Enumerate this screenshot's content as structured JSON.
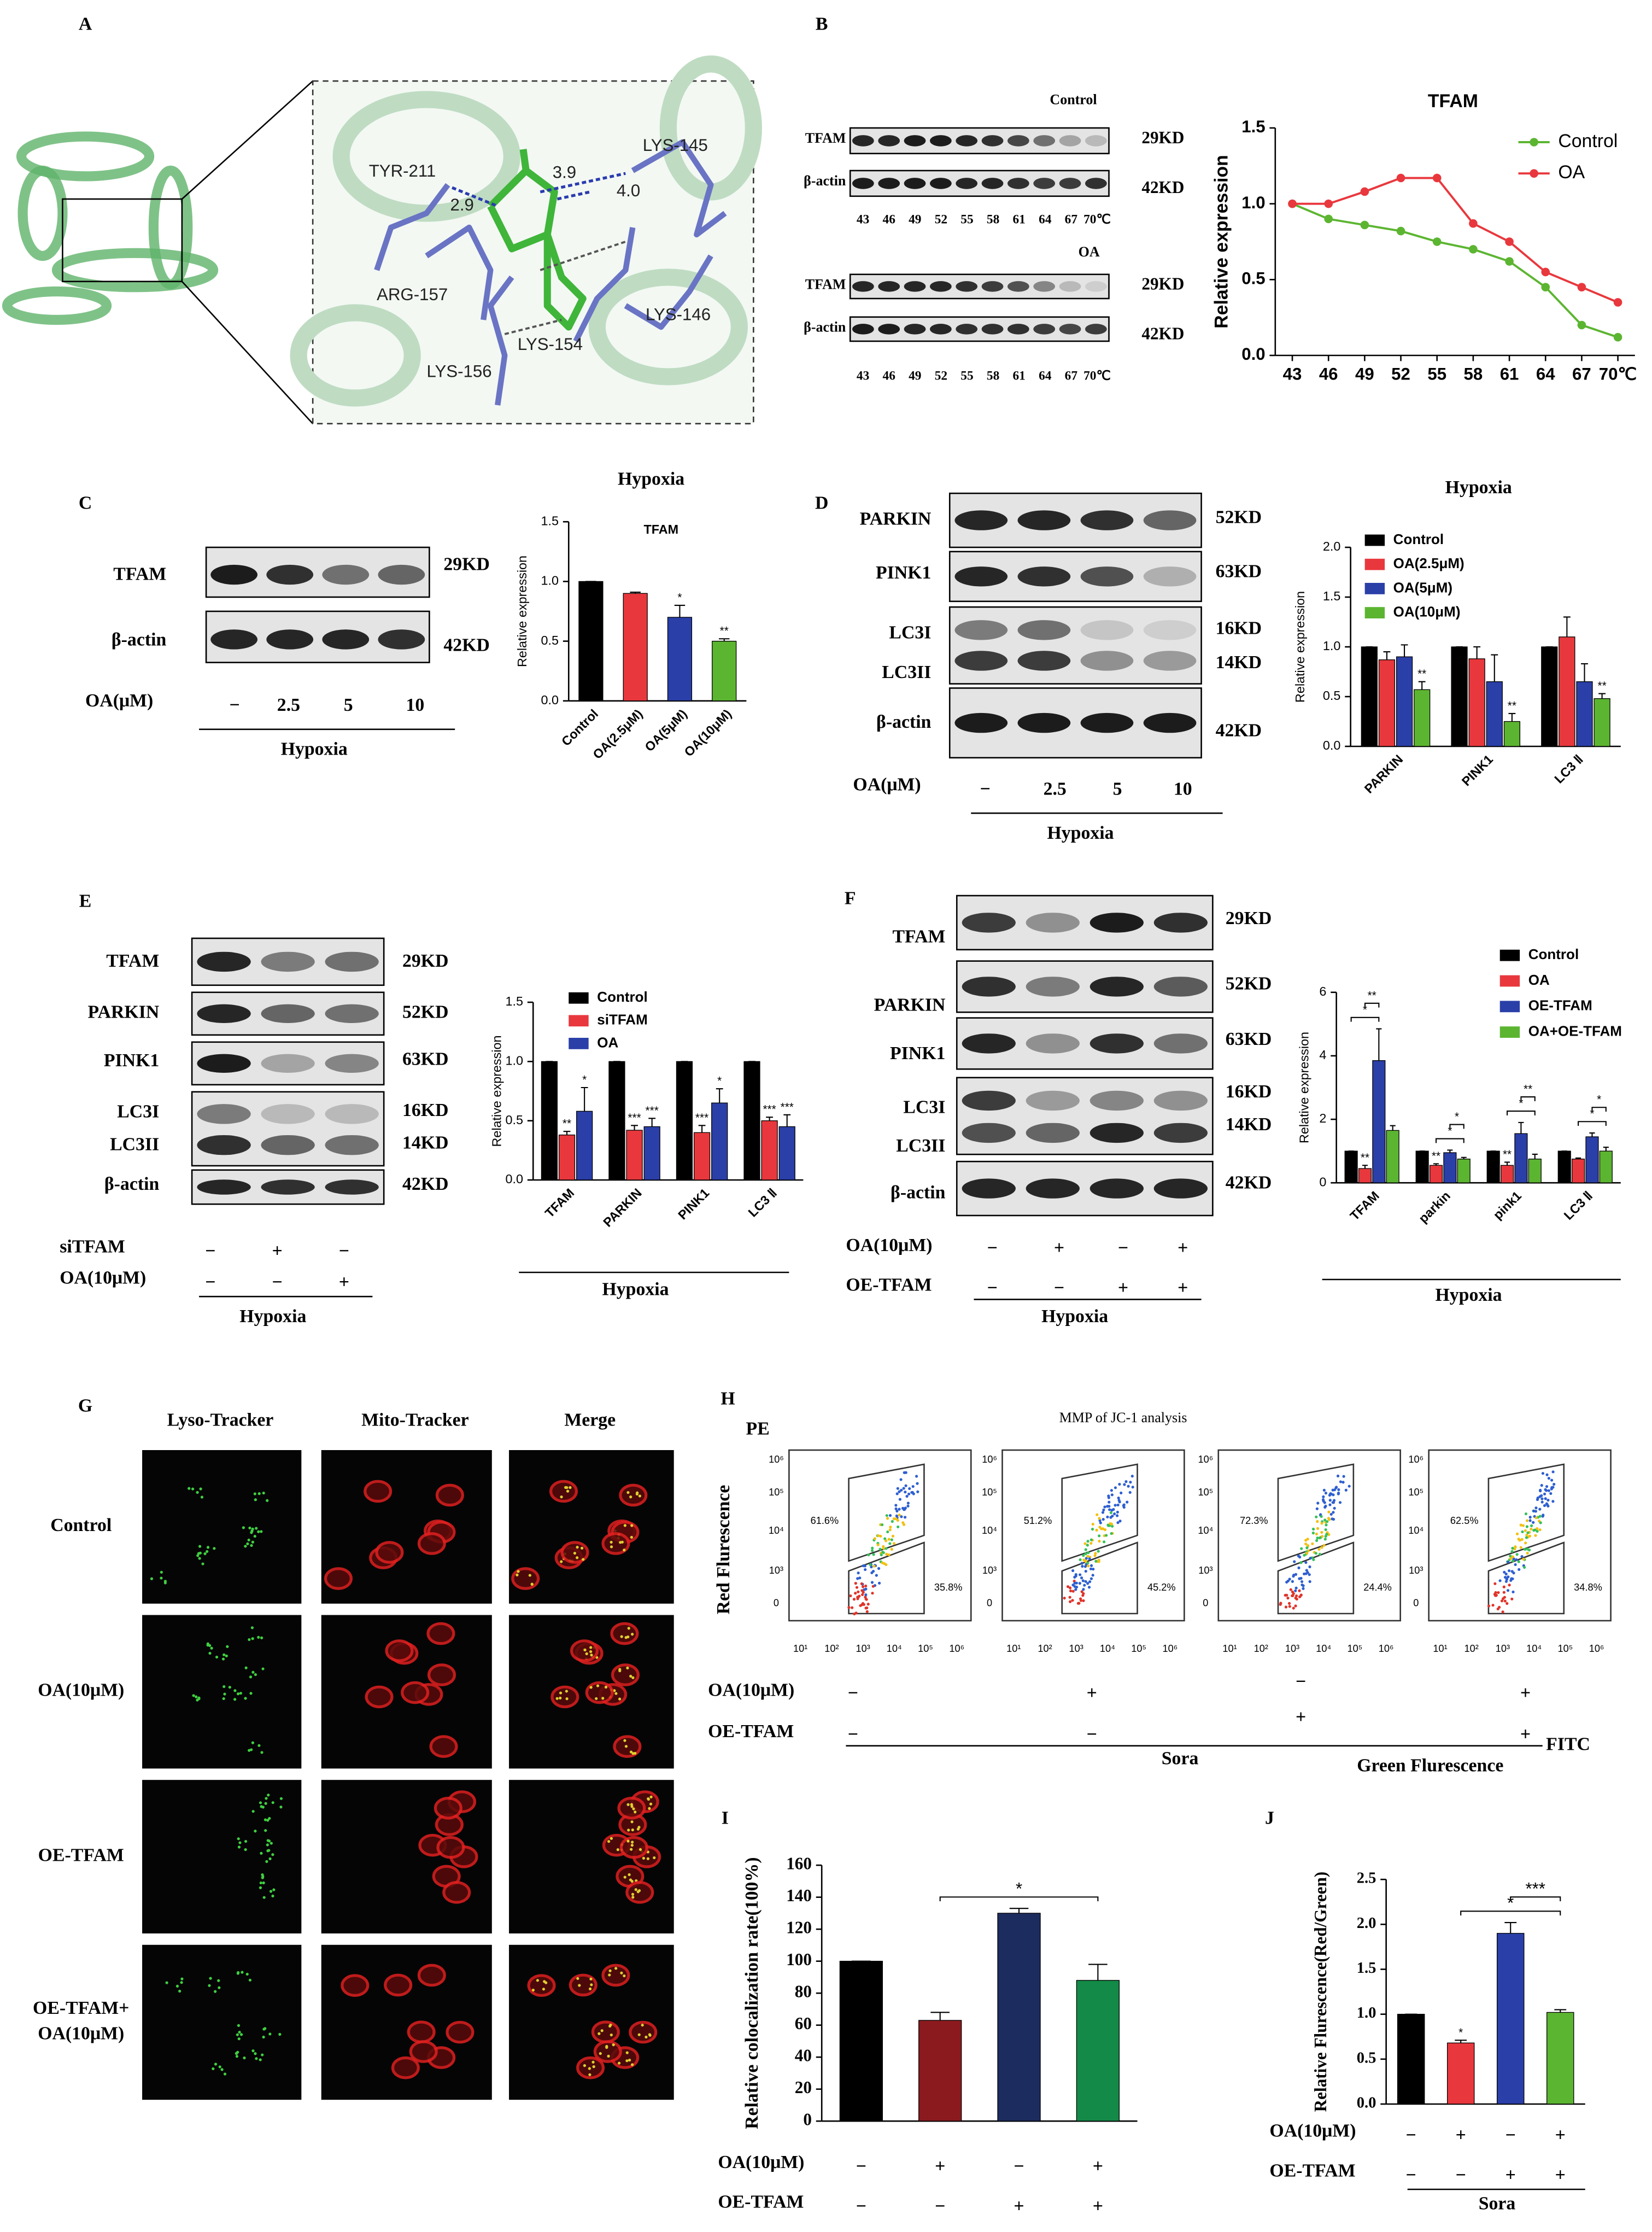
{
  "panel_labels": [
    "A",
    "B",
    "C",
    "D",
    "E",
    "F",
    "G",
    "H",
    "I",
    "J"
  ],
  "docking": {
    "residues": [
      "TYR-211",
      "ARG-157",
      "LYS-156",
      "LYS-154",
      "LYS-146",
      "LYS-145"
    ],
    "distances": [
      "2.9",
      "3.9",
      "4.0"
    ]
  },
  "blot_B": {
    "groups": [
      "Control",
      "OA"
    ],
    "rows": [
      "TFAM",
      "β-actin",
      "TFAM",
      "β-actin"
    ],
    "sizes": [
      "29KD",
      "42KD",
      "29KD",
      "42KD"
    ]
  },
  "blot_C": {
    "rows": [
      "TFAM",
      "β-actin"
    ],
    "sizes": [
      "29KD",
      "42KD"
    ],
    "treatment": "OA(μM)",
    "doses": [
      "−",
      "2.5",
      "5",
      "10"
    ],
    "condition": "Hypoxia"
  },
  "blot_D": {
    "rows": [
      "PARKIN",
      "PINK1",
      "LC3I",
      "LC3II",
      "β-actin"
    ],
    "sizes": [
      "52KD",
      "63KD",
      "16KD",
      "14KD",
      "42KD"
    ],
    "treatment": "OA(μM)",
    "doses": [
      "−",
      "2.5",
      "5",
      "10"
    ],
    "condition": "Hypoxia"
  },
  "blot_E": {
    "rows": [
      "TFAM",
      "PARKIN",
      "PINK1",
      "LC3I",
      "LC3II",
      "β-actin"
    ],
    "sizes": [
      "29KD",
      "52KD",
      "63KD",
      "16KD",
      "14KD",
      "42KD"
    ],
    "conditions": [
      {
        "name": "siTFAM",
        "signs": [
          "−",
          "+",
          "−"
        ]
      },
      {
        "name": "OA(10μM)",
        "signs": [
          "−",
          "−",
          "+"
        ]
      }
    ],
    "condition": "Hypoxia"
  },
  "blot_F": {
    "rows": [
      "TFAM",
      "PARKIN",
      "PINK1",
      "LC3I",
      "LC3II",
      "β-actin"
    ],
    "sizes": [
      "29KD",
      "52KD",
      "63KD",
      "16KD",
      "14KD",
      "42KD"
    ],
    "conditions": [
      {
        "name": "OA(10μM)",
        "signs": [
          "−",
          "+",
          "−",
          "+"
        ]
      },
      {
        "name": "OE-TFAM",
        "signs": [
          "−",
          "−",
          "+",
          "+"
        ]
      }
    ],
    "condition": "Hypoxia"
  },
  "imaging_G": {
    "columns": [
      "Lyso-Tracker",
      "Mito-Tracker",
      "Merge"
    ],
    "rows": [
      [
        "Control"
      ],
      [
        "OA(10μM)"
      ],
      [
        "OE-TFAM"
      ],
      [
        "OE-TFAM+",
        "OA(10μM)"
      ]
    ]
  },
  "flow_H": {
    "channel": "PE",
    "title": "MMP of JC-1 analysis",
    "ylabel": "Red Flurescence",
    "xlabel": "Green Flurescence",
    "x_channel": "FITC",
    "group": "Sora",
    "yticks": [
      "10⁶",
      "10⁵",
      "10⁴",
      "10³",
      "0"
    ],
    "xticks": [
      "10¹",
      "10²",
      "10³",
      "10⁴",
      "10⁵",
      "10⁶"
    ],
    "upper_pct": [
      "61.6%",
      "51.2%",
      "72.3%",
      "62.5%"
    ],
    "lower_pct": [
      "35.8%",
      "45.2%",
      "24.4%",
      "34.8%"
    ],
    "conditions": [
      {
        "name": "OA(10μM)",
        "signs": [
          "−",
          "+",
          "−",
          "+"
        ]
      },
      {
        "name": "OE-TFAM",
        "signs": [
          "−",
          "−",
          "+",
          "+"
        ]
      }
    ]
  },
  "chart_data": [
    {
      "type": "line",
      "title": "TFAM",
      "ylabel": "Relative expression",
      "categories": [
        "43",
        "46",
        "49",
        "52",
        "55",
        "58",
        "61",
        "64",
        "67",
        "70℃"
      ],
      "series": [
        {
          "name": "Control",
          "color": "#5cb531",
          "values": [
            1.0,
            0.9,
            0.86,
            0.82,
            0.75,
            0.7,
            0.62,
            0.45,
            0.2,
            0.12
          ]
        },
        {
          "name": "OA",
          "color": "#e8383d",
          "values": [
            1.0,
            1.0,
            1.08,
            1.17,
            1.17,
            0.87,
            0.75,
            0.55,
            0.45,
            0.35
          ]
        }
      ],
      "ylim": [
        0,
        1.5
      ],
      "yticks": [
        {
          "value": 0,
          "label": "0.0"
        },
        0.5,
        {
          "value": 1,
          "label": "1.0"
        },
        1.5
      ],
      "legend": "upper right"
    },
    {
      "type": "bar",
      "title": "Hypoxia",
      "subtitle": "TFAM",
      "ylabel": "Relative expression",
      "categories": [
        "Control",
        "OA(2.5μM)",
        "OA(5μM)",
        "OA(10μM)"
      ],
      "values": [
        1.0,
        0.9,
        0.7,
        0.5
      ],
      "errors": [
        0,
        0.01,
        0.1,
        0.02
      ],
      "significance": [
        null,
        null,
        "*",
        "**"
      ],
      "colors": [
        "#000000",
        "#e8383d",
        "#2b3fa8",
        "#5cb531"
      ],
      "ylim": [
        0,
        1.5
      ],
      "yticks": [
        {
          "value": 0,
          "label": "0.0"
        },
        0.5,
        {
          "value": 1,
          "label": "1.0"
        },
        1.5
      ]
    },
    {
      "type": "bar",
      "title": "Hypoxia",
      "ylabel": "Relative expression",
      "categories": [
        "PARKIN",
        "PINK1",
        "LC3 Ⅱ"
      ],
      "series": [
        {
          "name": "Control",
          "color": "#000000",
          "values": [
            1,
            1,
            1
          ],
          "errors": [
            0,
            0,
            0
          ]
        },
        {
          "name": "OA(2.5μM)",
          "color": "#e8383d",
          "values": [
            0.87,
            0.88,
            1.1
          ],
          "errors": [
            0.08,
            0.12,
            0.2
          ]
        },
        {
          "name": "OA(5μM)",
          "color": "#2b3fa8",
          "values": [
            0.9,
            0.65,
            0.65
          ],
          "errors": [
            0.12,
            0.27,
            0.18
          ]
        },
        {
          "name": "OA(10μM)",
          "color": "#5cb531",
          "values": [
            0.57,
            0.25,
            0.48
          ],
          "errors": [
            0.08,
            0.08,
            0.05
          ],
          "significance": [
            "**",
            "**",
            "**"
          ]
        }
      ],
      "ylim": [
        0,
        2
      ],
      "yticks": [
        {
          "value": 0,
          "label": "0.0"
        },
        0.5,
        {
          "value": 1,
          "label": "1.0"
        },
        1.5,
        {
          "value": 2,
          "label": "2.0"
        }
      ],
      "legend": "upper left"
    },
    {
      "type": "bar",
      "xlabel": "Hypoxia",
      "ylabel": "Relative expression",
      "categories": [
        "TFAM",
        "PARKIN",
        "PINK1",
        "LC3 Ⅱ"
      ],
      "series": [
        {
          "name": "Control",
          "color": "#000000",
          "values": [
            1,
            1,
            1,
            1
          ],
          "errors": [
            0,
            0,
            0,
            0
          ]
        },
        {
          "name": "siTFAM",
          "color": "#e8383d",
          "values": [
            0.38,
            0.42,
            0.4,
            0.5
          ],
          "errors": [
            0.03,
            0.04,
            0.06,
            0.03
          ],
          "significance": [
            "**",
            "***",
            "***",
            "***"
          ]
        },
        {
          "name": "OA",
          "color": "#2b3fa8",
          "values": [
            0.58,
            0.45,
            0.65,
            0.45
          ],
          "errors": [
            0.2,
            0.07,
            0.12,
            0.1
          ],
          "significance": [
            "*",
            "***",
            "*",
            "***"
          ]
        }
      ],
      "ylim": [
        0,
        1.5
      ],
      "yticks": [
        {
          "value": 0,
          "label": "0.0"
        },
        0.5,
        {
          "value": 1,
          "label": "1.0"
        },
        1.5
      ],
      "legend": "upper left"
    },
    {
      "type": "bar",
      "xlabel": "Hypoxia",
      "ylabel": "Relative expression",
      "categories": [
        "TFAM",
        "parkin",
        "pink1",
        "LC3 Ⅱ"
      ],
      "series": [
        {
          "name": "Control",
          "color": "#000000",
          "values": [
            1,
            1,
            1,
            1
          ],
          "errors": [
            0,
            0,
            0,
            0
          ]
        },
        {
          "name": "OA",
          "color": "#e8383d",
          "values": [
            0.45,
            0.55,
            0.55,
            0.75
          ],
          "errors": [
            0.1,
            0.05,
            0.1,
            0.03
          ],
          "significance": [
            "**",
            "**",
            "**",
            null
          ]
        },
        {
          "name": "OE-TFAM",
          "color": "#2b3fa8",
          "values": [
            3.85,
            0.95,
            1.55,
            1.45
          ],
          "errors": [
            1.0,
            0.08,
            0.35,
            0.12
          ]
        },
        {
          "name": "OA+OE-TFAM",
          "color": "#5cb531",
          "values": [
            1.65,
            0.75,
            0.75,
            1.0
          ],
          "errors": [
            0.15,
            0.05,
            0.15,
            0.12
          ]
        }
      ],
      "comparisons": [
        {
          "category": 0,
          "from": 0,
          "to": 2,
          "label": "*"
        },
        {
          "category": 0,
          "from": 1,
          "to": 2,
          "label": "**"
        },
        {
          "category": 1,
          "from": 1,
          "to": 3,
          "label": "*"
        },
        {
          "category": 1,
          "from": 2,
          "to": 3,
          "label": "*"
        },
        {
          "category": 2,
          "from": 1,
          "to": 3,
          "label": "*"
        },
        {
          "category": 2,
          "from": 2,
          "to": 3,
          "label": "**"
        },
        {
          "category": 3,
          "from": 1,
          "to": 3,
          "label": "*"
        },
        {
          "category": 3,
          "from": 2,
          "to": 3,
          "label": "*"
        }
      ],
      "ylim": [
        0,
        6
      ],
      "yticks": [
        0,
        2,
        4,
        6
      ],
      "legend": "upper right"
    },
    {
      "type": "bar",
      "ylabel": "Relative colocalization rate(100%)",
      "values": [
        100,
        63,
        130,
        88
      ],
      "errors": [
        0,
        5,
        3,
        10
      ],
      "colors": [
        "#000000",
        "#8b1a1f",
        "#1d2c5e",
        "#138a47"
      ],
      "comparisons": [
        {
          "from": 1,
          "to": 3,
          "label": "*"
        }
      ],
      "ylim": [
        0,
        160
      ],
      "yticks": [
        0,
        20,
        40,
        60,
        80,
        100,
        120,
        140,
        160
      ],
      "conditions": [
        {
          "name": "OA(10μM)",
          "signs": [
            "−",
            "+",
            "−",
            "+"
          ]
        },
        {
          "name": "OE-TFAM",
          "signs": [
            "−",
            "−",
            "+",
            "+"
          ]
        }
      ]
    },
    {
      "type": "bar",
      "ylabel": "Relative Flurescence(Red/Green)",
      "values": [
        1.0,
        0.68,
        1.9,
        1.02
      ],
      "errors": [
        0,
        0.03,
        0.12,
        0.03
      ],
      "significance": [
        null,
        "*",
        null,
        null
      ],
      "colors": [
        "#000000",
        "#e8383d",
        "#2b3fa8",
        "#5cb531"
      ],
      "comparisons": [
        {
          "from": 1,
          "to": 3,
          "label": "*"
        },
        {
          "from": 2,
          "to": 3,
          "label": "***"
        }
      ],
      "ylim": [
        0,
        2.5
      ],
      "yticks": [
        {
          "value": 0,
          "label": "0.0"
        },
        0.5,
        {
          "value": 1,
          "label": "1.0"
        },
        1.5,
        {
          "value": 2,
          "label": "2.0"
        },
        2.5
      ],
      "conditions": [
        {
          "name": "OA(10μM)",
          "signs": [
            "−",
            "+",
            "−",
            "+"
          ]
        },
        {
          "name": "OE-TFAM",
          "signs": [
            "−",
            "−",
            "+",
            "+"
          ]
        }
      ],
      "group": "Sora"
    }
  ]
}
